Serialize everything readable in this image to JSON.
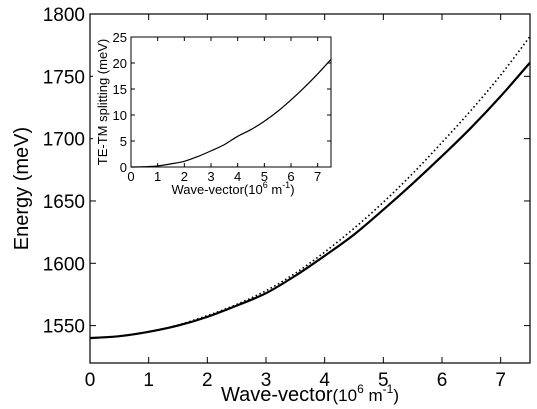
{
  "chart_data": [
    {
      "type": "line",
      "panel": "main",
      "xlabel": "Wave-vector",
      "xlabel_unit": "(10",
      "xlabel_exp": "6",
      "xlabel_unit_tail": " m",
      "xlabel_unit_exp": "-1",
      "xlabel_close": ")",
      "ylabel": "Energy (meV)",
      "xlim": [
        0,
        7.5
      ],
      "ylim": [
        1520,
        1800
      ],
      "xticks": [
        0,
        1,
        2,
        3,
        4,
        5,
        6,
        7
      ],
      "yticks": [
        1550,
        1600,
        1650,
        1700,
        1750,
        1800
      ],
      "grid": false,
      "legend": "none",
      "series": [
        {
          "style": "solid",
          "x": [
            0,
            0.5,
            1,
            1.5,
            2,
            2.5,
            3,
            3.5,
            4,
            4.5,
            5,
            5.5,
            6,
            6.5,
            7,
            7.5
          ],
          "y": [
            1540,
            1541.5,
            1545,
            1550,
            1557,
            1566,
            1576,
            1590,
            1606,
            1623,
            1643,
            1664,
            1686,
            1709,
            1734,
            1761
          ]
        },
        {
          "style": "dotted",
          "x": [
            0,
            0.5,
            1,
            1.5,
            2,
            2.5,
            3,
            3.5,
            4,
            4.5,
            5,
            5.5,
            6,
            6.5,
            7,
            7.5
          ],
          "y": [
            1540,
            1541.5,
            1545,
            1550.5,
            1558,
            1567,
            1578,
            1592,
            1609,
            1628,
            1649,
            1672,
            1697,
            1723,
            1751,
            1782
          ]
        }
      ]
    },
    {
      "type": "line",
      "panel": "inset",
      "xlabel": "Wave-vector",
      "xlabel_unit": "(10",
      "xlabel_exp": "6",
      "xlabel_unit_tail": " m",
      "xlabel_unit_exp": "-1",
      "xlabel_close": ")",
      "ylabel": "TE-TM splitting (meV)",
      "xlim": [
        0,
        7.5
      ],
      "ylim": [
        0,
        25
      ],
      "xticks": [
        0,
        1,
        2,
        3,
        4,
        5,
        6,
        7
      ],
      "yticks": [
        0,
        5,
        10,
        15,
        20,
        25
      ],
      "grid": false,
      "legend": "none",
      "series": [
        {
          "style": "solid",
          "x": [
            0,
            0.5,
            1,
            1.5,
            2,
            2.5,
            3,
            3.5,
            4,
            4.5,
            5,
            5.5,
            6,
            6.5,
            7,
            7.5
          ],
          "y": [
            0,
            0.05,
            0.2,
            0.6,
            1.1,
            2.0,
            3.1,
            4.3,
            5.9,
            7.2,
            8.8,
            10.7,
            12.9,
            15.3,
            17.9,
            20.7
          ]
        }
      ]
    }
  ]
}
